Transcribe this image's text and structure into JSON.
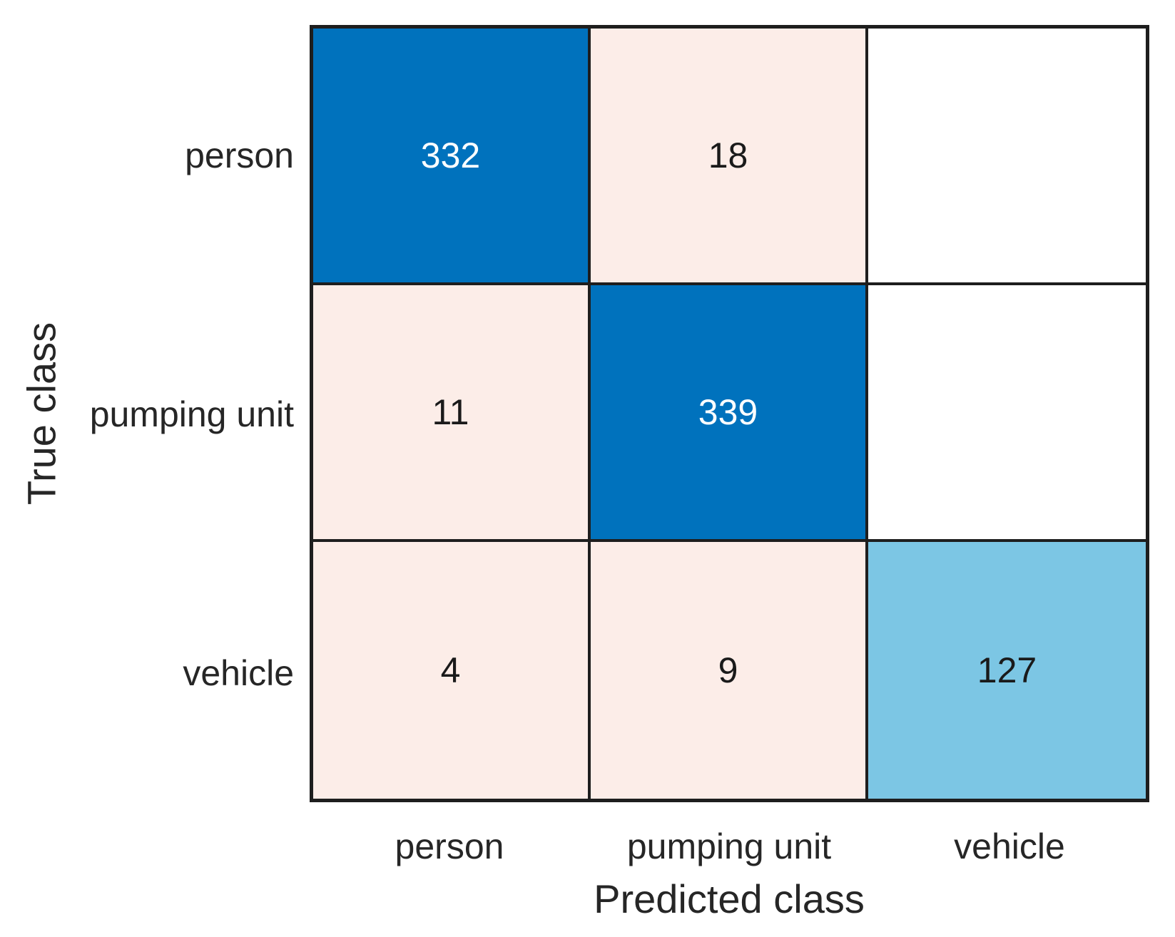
{
  "figure": {
    "background": "#FFFFFF"
  },
  "chart_data": {
    "type": "heatmap",
    "subtype": "confusion-matrix",
    "title": "",
    "xlabel": "Predicted class",
    "ylabel": "True class",
    "x_categories": [
      "person",
      "pumping unit",
      "vehicle"
    ],
    "y_categories": [
      "person",
      "pumping unit",
      "vehicle"
    ],
    "matrix": [
      [
        332,
        18,
        null
      ],
      [
        11,
        339,
        null
      ],
      [
        4,
        9,
        127
      ]
    ],
    "legend": "none",
    "colors": {
      "diagonal_strong_blue": "#0072BD",
      "diagonal_light_blue": "#7CC6E4",
      "off_diagonal_pink": "#FCEDE8",
      "empty_cell": "#FFFFFF",
      "grid_line": "#1E1E1E",
      "text_dark": "#1A1A1A",
      "text_on_dark": "#FFFFFF"
    },
    "cells": [
      {
        "row": "person",
        "col": "person",
        "display": "332",
        "bg": "#0072BD",
        "fg": "#FFFFFF"
      },
      {
        "row": "person",
        "col": "pumping unit",
        "display": "18",
        "bg": "#FCEDE8",
        "fg": "#1A1A1A"
      },
      {
        "row": "person",
        "col": "vehicle",
        "display": "",
        "bg": "#FFFFFF",
        "fg": "#1A1A1A"
      },
      {
        "row": "pumping unit",
        "col": "person",
        "display": "11",
        "bg": "#FCEDE8",
        "fg": "#1A1A1A"
      },
      {
        "row": "pumping unit",
        "col": "pumping unit",
        "display": "339",
        "bg": "#0072BD",
        "fg": "#FFFFFF"
      },
      {
        "row": "pumping unit",
        "col": "vehicle",
        "display": "",
        "bg": "#FFFFFF",
        "fg": "#1A1A1A"
      },
      {
        "row": "vehicle",
        "col": "person",
        "display": "4",
        "bg": "#FCEDE8",
        "fg": "#1A1A1A"
      },
      {
        "row": "vehicle",
        "col": "pumping unit",
        "display": "9",
        "bg": "#FCEDE8",
        "fg": "#1A1A1A"
      },
      {
        "row": "vehicle",
        "col": "vehicle",
        "display": "127",
        "bg": "#7CC6E4",
        "fg": "#1A1A1A"
      }
    ]
  }
}
